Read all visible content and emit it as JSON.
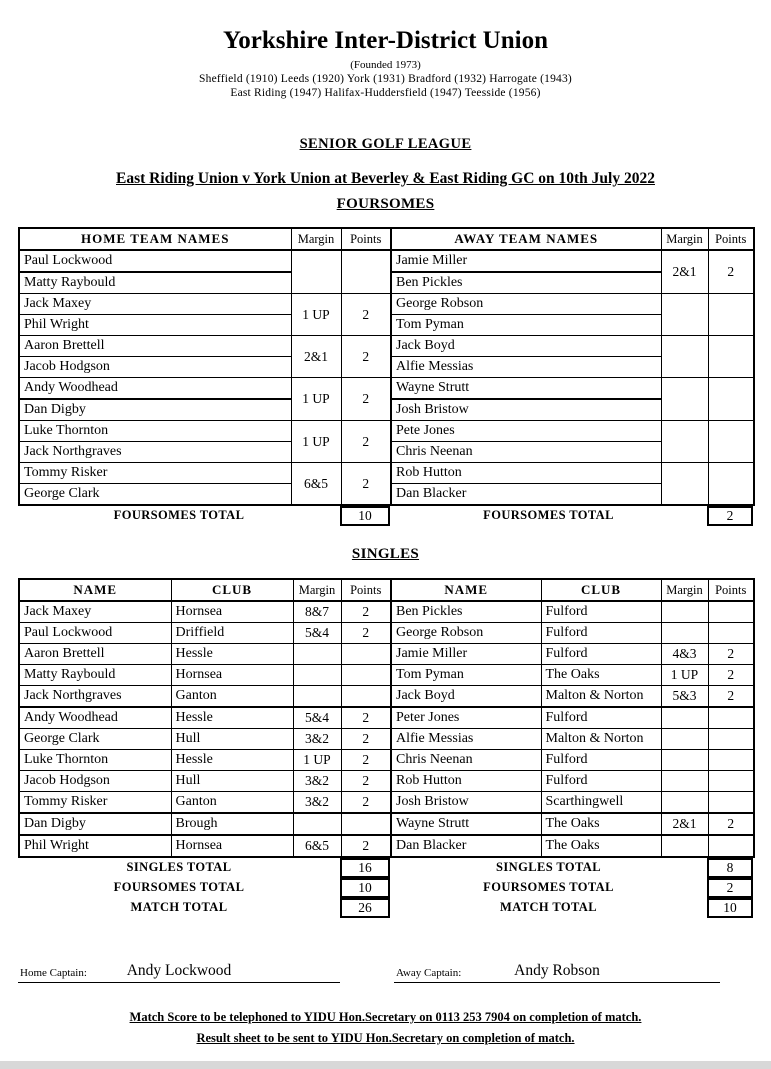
{
  "header": {
    "title": "Yorkshire Inter-District Union",
    "founded": "(Founded 1973)",
    "founders_line1": "Sheffield (1910) Leeds (1920) York (1931) Bradford (1932) Harrogate (1943)",
    "founders_line2": "East Riding (1947) Halifax-Huddersfield (1947) Teesside (1956)"
  },
  "league_title": "SENIOR GOLF LEAGUE",
  "match_title": "East Riding Union v York Union at Beverley & East Riding GC on 10th July 2022",
  "foursomes": {
    "heading": "FOURSOMES",
    "home": {
      "header": {
        "names": "HOME TEAM NAMES",
        "margin": "Margin",
        "points": "Points"
      },
      "pairs": [
        {
          "players": [
            "Paul Lockwood",
            "Matty Raybould"
          ],
          "margin": "",
          "points": ""
        },
        {
          "players": [
            "Jack Maxey",
            "Phil Wright"
          ],
          "margin": "1 UP",
          "points": "2"
        },
        {
          "players": [
            "Aaron Brettell",
            "Jacob Hodgson"
          ],
          "margin": "2&1",
          "points": "2"
        },
        {
          "players": [
            "Andy Woodhead",
            "Dan Digby"
          ],
          "margin": "1 UP",
          "points": "2"
        },
        {
          "players": [
            "Luke Thornton",
            "Jack Northgraves"
          ],
          "margin": "1 UP",
          "points": "2"
        },
        {
          "players": [
            "Tommy Risker",
            "George Clark"
          ],
          "margin": "6&5",
          "points": "2"
        }
      ],
      "total_label": "FOURSOMES TOTAL",
      "total": "10"
    },
    "away": {
      "header": {
        "names": "AWAY TEAM NAMES",
        "margin": "Margin",
        "points": "Points"
      },
      "pairs": [
        {
          "players": [
            "Jamie Miller",
            "Ben Pickles"
          ],
          "margin": "2&1",
          "points": "2"
        },
        {
          "players": [
            "George Robson",
            "Tom Pyman"
          ],
          "margin": "",
          "points": ""
        },
        {
          "players": [
            "Jack Boyd",
            "Alfie Messias"
          ],
          "margin": "",
          "points": ""
        },
        {
          "players": [
            "Wayne Strutt",
            "Josh Bristow"
          ],
          "margin": "",
          "points": ""
        },
        {
          "players": [
            "Pete Jones",
            "Chris Neenan"
          ],
          "margin": "",
          "points": ""
        },
        {
          "players": [
            "Rob Hutton",
            "Dan Blacker"
          ],
          "margin": "",
          "points": ""
        }
      ],
      "total_label": "FOURSOMES TOTAL",
      "total": "2"
    }
  },
  "singles": {
    "heading": "SINGLES",
    "home": {
      "header": {
        "name": "NAME",
        "club": "CLUB",
        "margin": "Margin",
        "points": "Points"
      },
      "rows": [
        {
          "name": "Jack Maxey",
          "club": "Hornsea",
          "margin": "8&7",
          "points": "2"
        },
        {
          "name": "Paul Lockwood",
          "club": "Driffield",
          "margin": "5&4",
          "points": "2"
        },
        {
          "name": "Aaron Brettell",
          "club": "Hessle",
          "margin": "",
          "points": ""
        },
        {
          "name": "Matty Raybould",
          "club": "Hornsea",
          "margin": "",
          "points": ""
        },
        {
          "name": "Jack Northgraves",
          "club": "Ganton",
          "margin": "",
          "points": ""
        },
        {
          "name": "Andy Woodhead",
          "club": "Hessle",
          "margin": "5&4",
          "points": "2"
        },
        {
          "name": "George Clark",
          "club": "Hull",
          "margin": "3&2",
          "points": "2"
        },
        {
          "name": "Luke Thornton",
          "club": "Hessle",
          "margin": "1 UP",
          "points": "2"
        },
        {
          "name": "Jacob Hodgson",
          "club": "Hull",
          "margin": "3&2",
          "points": "2"
        },
        {
          "name": "Tommy Risker",
          "club": "Ganton",
          "margin": "3&2",
          "points": "2"
        },
        {
          "name": "Dan Digby",
          "club": "Brough",
          "margin": "",
          "points": ""
        },
        {
          "name": "Phil Wright",
          "club": "Hornsea",
          "margin": "6&5",
          "points": "2"
        }
      ]
    },
    "away": {
      "header": {
        "name": "NAME",
        "club": "CLUB",
        "margin": "Margin",
        "points": "Points"
      },
      "rows": [
        {
          "name": "Ben Pickles",
          "club": "Fulford",
          "margin": "",
          "points": ""
        },
        {
          "name": "George Robson",
          "club": "Fulford",
          "margin": "",
          "points": ""
        },
        {
          "name": "Jamie Miller",
          "club": "Fulford",
          "margin": "4&3",
          "points": "2"
        },
        {
          "name": "Tom Pyman",
          "club": "The Oaks",
          "margin": "1 UP",
          "points": "2"
        },
        {
          "name": "Jack Boyd",
          "club": "Malton & Norton",
          "margin": "5&3",
          "points": "2"
        },
        {
          "name": "Peter Jones",
          "club": "Fulford",
          "margin": "",
          "points": ""
        },
        {
          "name": "Alfie Messias",
          "club": "Malton & Norton",
          "margin": "",
          "points": ""
        },
        {
          "name": "Chris Neenan",
          "club": "Fulford",
          "margin": "",
          "points": ""
        },
        {
          "name": "Rob Hutton",
          "club": "Fulford",
          "margin": "",
          "points": ""
        },
        {
          "name": "Josh Bristow",
          "club": "Scarthingwell",
          "margin": "",
          "points": ""
        },
        {
          "name": "Wayne Strutt",
          "club": "The Oaks",
          "margin": "2&1",
          "points": "2"
        },
        {
          "name": "Dan Blacker",
          "club": "The Oaks",
          "margin": "",
          "points": ""
        }
      ]
    }
  },
  "singles_totals": {
    "home": [
      {
        "label": "SINGLES TOTAL",
        "value": "16"
      },
      {
        "label": "FOURSOMES TOTAL",
        "value": "10"
      },
      {
        "label": "MATCH TOTAL",
        "value": "26"
      }
    ],
    "away": [
      {
        "label": "SINGLES TOTAL",
        "value": "8"
      },
      {
        "label": "FOURSOMES TOTAL",
        "value": "2"
      },
      {
        "label": "MATCH TOTAL",
        "value": "10"
      }
    ]
  },
  "captains": {
    "home_label": "Home Captain:",
    "home_name": "Andy Lockwood",
    "away_label": "Away Captain:",
    "away_name": "Andy Robson"
  },
  "footer": {
    "line1": "Match Score to be telephoned to YIDU Hon.Secretary on 0113 253 7904 on completion of match.",
    "line2": "Result sheet to be sent to YIDU Hon.Secretary on completion of match."
  }
}
